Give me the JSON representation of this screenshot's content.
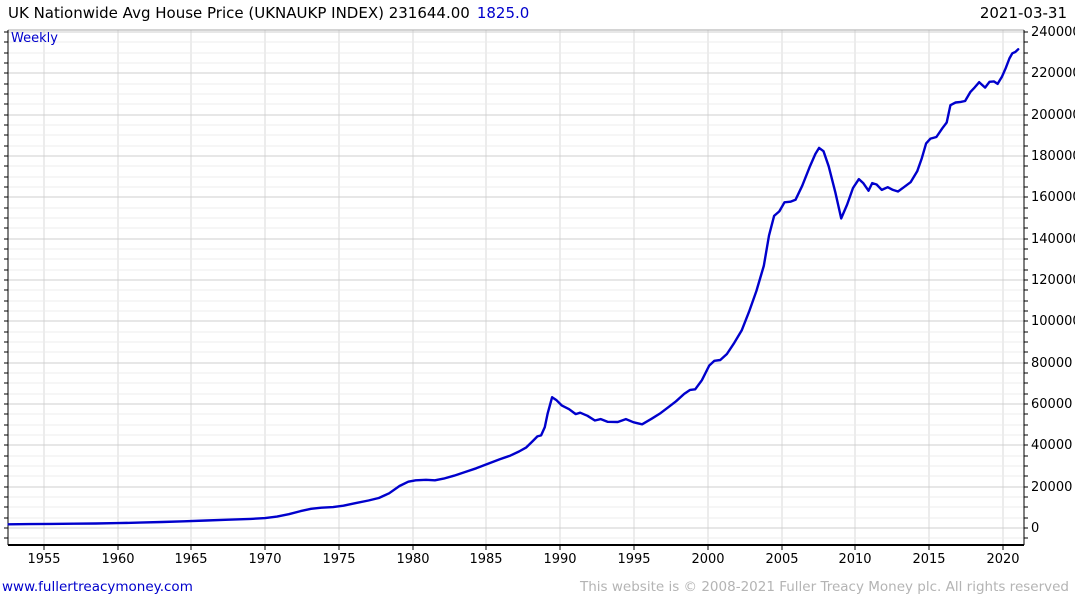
{
  "header": {
    "title": "UK Nationwide Avg House Price (UKNAUKP INDEX) 231644.00",
    "change": "1825.0",
    "date": "2021-03-31"
  },
  "footer": {
    "link": "www.fullertreacymoney.com",
    "copyright": "This website is © 2008-2021 Fuller Treacy Money plc. All rights reserved"
  },
  "colors": {
    "accent_blue": "#0000cc",
    "grid_minor": "#ececec",
    "grid_major": "#cfcfcf",
    "grid_vertical": "#d8d8d8",
    "frame_dark": "#000000",
    "frame_top": "#aaaaaa",
    "copyright_gray": "#b4b4b4"
  },
  "chart_data": {
    "type": "line",
    "title": "UK Nationwide Avg House Price (UKNAUKP INDEX)",
    "last_price": 231644.0,
    "weekly_change": 1825.0,
    "as_of_date": "2021-03-31",
    "frequency": "Weekly",
    "xlabel": "",
    "ylabel": "",
    "grid": true,
    "legend": "none",
    "x_ticks": [
      1955,
      1960,
      1965,
      1970,
      1975,
      1980,
      1985,
      1990,
      1995,
      2000,
      2005,
      2010,
      2015,
      2020
    ],
    "y_ticks": [
      0,
      20000,
      40000,
      60000,
      80000,
      100000,
      120000,
      140000,
      160000,
      180000,
      200000,
      220000,
      240000
    ],
    "y_minor_step": 5000,
    "x_range": [
      1952.56,
      2021.44
    ],
    "y_range": [
      -8226,
      240968
    ],
    "series": [
      {
        "name": "UKNAUKP INDEX — UK Nationwide Avg House Price (GBP)",
        "color": "#0000cc",
        "points": [
          [
            1952.6,
            1800
          ],
          [
            1954,
            1900
          ],
          [
            1955.5,
            2000
          ],
          [
            1957,
            2100
          ],
          [
            1958.5,
            2200
          ],
          [
            1960,
            2350
          ],
          [
            1961.5,
            2600
          ],
          [
            1963,
            2900
          ],
          [
            1964.5,
            3250
          ],
          [
            1966,
            3650
          ],
          [
            1967.5,
            4000
          ],
          [
            1969,
            4400
          ],
          [
            1970,
            4800
          ],
          [
            1970.8,
            5500
          ],
          [
            1971.6,
            6700
          ],
          [
            1972.4,
            8200
          ],
          [
            1973.1,
            9300
          ],
          [
            1973.8,
            9800
          ],
          [
            1974.6,
            10100
          ],
          [
            1975.3,
            10800
          ],
          [
            1976.1,
            12000
          ],
          [
            1977,
            13300
          ],
          [
            1977.7,
            14500
          ],
          [
            1978.4,
            16800
          ],
          [
            1979.1,
            20300
          ],
          [
            1979.7,
            22400
          ],
          [
            1980.2,
            23100
          ],
          [
            1980.9,
            23300
          ],
          [
            1981.5,
            23100
          ],
          [
            1982.1,
            23900
          ],
          [
            1982.8,
            25300
          ],
          [
            1983.5,
            27000
          ],
          [
            1984.3,
            28900
          ],
          [
            1985.1,
            31100
          ],
          [
            1985.9,
            33300
          ],
          [
            1986.6,
            35000
          ],
          [
            1987.2,
            37000
          ],
          [
            1987.7,
            39000
          ],
          [
            1988.1,
            41800
          ],
          [
            1988.45,
            44300
          ],
          [
            1988.7,
            44800
          ],
          [
            1988.95,
            48800
          ],
          [
            1989.15,
            55500
          ],
          [
            1989.45,
            63300
          ],
          [
            1989.75,
            61800
          ],
          [
            1990.1,
            59300
          ],
          [
            1990.6,
            57500
          ],
          [
            1991.05,
            55100
          ],
          [
            1991.35,
            55800
          ],
          [
            1991.85,
            54300
          ],
          [
            1992.35,
            52000
          ],
          [
            1992.75,
            52700
          ],
          [
            1993.2,
            51400
          ],
          [
            1993.9,
            51300
          ],
          [
            1994.45,
            52700
          ],
          [
            1994.95,
            51200
          ],
          [
            1995.55,
            50200
          ],
          [
            1996.2,
            52900
          ],
          [
            1996.8,
            55600
          ],
          [
            1997.35,
            58600
          ],
          [
            1997.85,
            61300
          ],
          [
            1998.4,
            64900
          ],
          [
            1998.8,
            66800
          ],
          [
            1999.15,
            67100
          ],
          [
            1999.6,
            71500
          ],
          [
            2000.1,
            78600
          ],
          [
            2000.45,
            80900
          ],
          [
            2000.85,
            81300
          ],
          [
            2001.3,
            84200
          ],
          [
            2001.8,
            89600
          ],
          [
            2002.3,
            95600
          ],
          [
            2002.8,
            104700
          ],
          [
            2003.3,
            114700
          ],
          [
            2003.8,
            126800
          ],
          [
            2004.15,
            141500
          ],
          [
            2004.5,
            151000
          ],
          [
            2004.85,
            153200
          ],
          [
            2005.2,
            157600
          ],
          [
            2005.6,
            157900
          ],
          [
            2005.95,
            158800
          ],
          [
            2006.4,
            165600
          ],
          [
            2006.9,
            174500
          ],
          [
            2007.3,
            181000
          ],
          [
            2007.55,
            183900
          ],
          [
            2007.85,
            182300
          ],
          [
            2008.2,
            175000
          ],
          [
            2008.65,
            162500
          ],
          [
            2009.05,
            149800
          ],
          [
            2009.45,
            156500
          ],
          [
            2009.85,
            164500
          ],
          [
            2010.25,
            168800
          ],
          [
            2010.55,
            166800
          ],
          [
            2010.9,
            163200
          ],
          [
            2011.15,
            166900
          ],
          [
            2011.45,
            166200
          ],
          [
            2011.8,
            163600
          ],
          [
            2012.2,
            164900
          ],
          [
            2012.55,
            163600
          ],
          [
            2012.9,
            162800
          ],
          [
            2013.3,
            164900
          ],
          [
            2013.75,
            167300
          ],
          [
            2014.2,
            172600
          ],
          [
            2014.5,
            178600
          ],
          [
            2014.8,
            186100
          ],
          [
            2015.1,
            188400
          ],
          [
            2015.5,
            189200
          ],
          [
            2015.9,
            193400
          ],
          [
            2016.2,
            196200
          ],
          [
            2016.45,
            204600
          ],
          [
            2016.8,
            205900
          ],
          [
            2017.15,
            206200
          ],
          [
            2017.45,
            206600
          ],
          [
            2017.8,
            210900
          ],
          [
            2018.1,
            213200
          ],
          [
            2018.4,
            215700
          ],
          [
            2018.8,
            213100
          ],
          [
            2019.1,
            215900
          ],
          [
            2019.4,
            216100
          ],
          [
            2019.65,
            214900
          ],
          [
            2019.95,
            218400
          ],
          [
            2020.2,
            222500
          ],
          [
            2020.45,
            227200
          ],
          [
            2020.65,
            229700
          ],
          [
            2020.85,
            230300
          ],
          [
            2021.05,
            231644
          ]
        ]
      }
    ]
  }
}
